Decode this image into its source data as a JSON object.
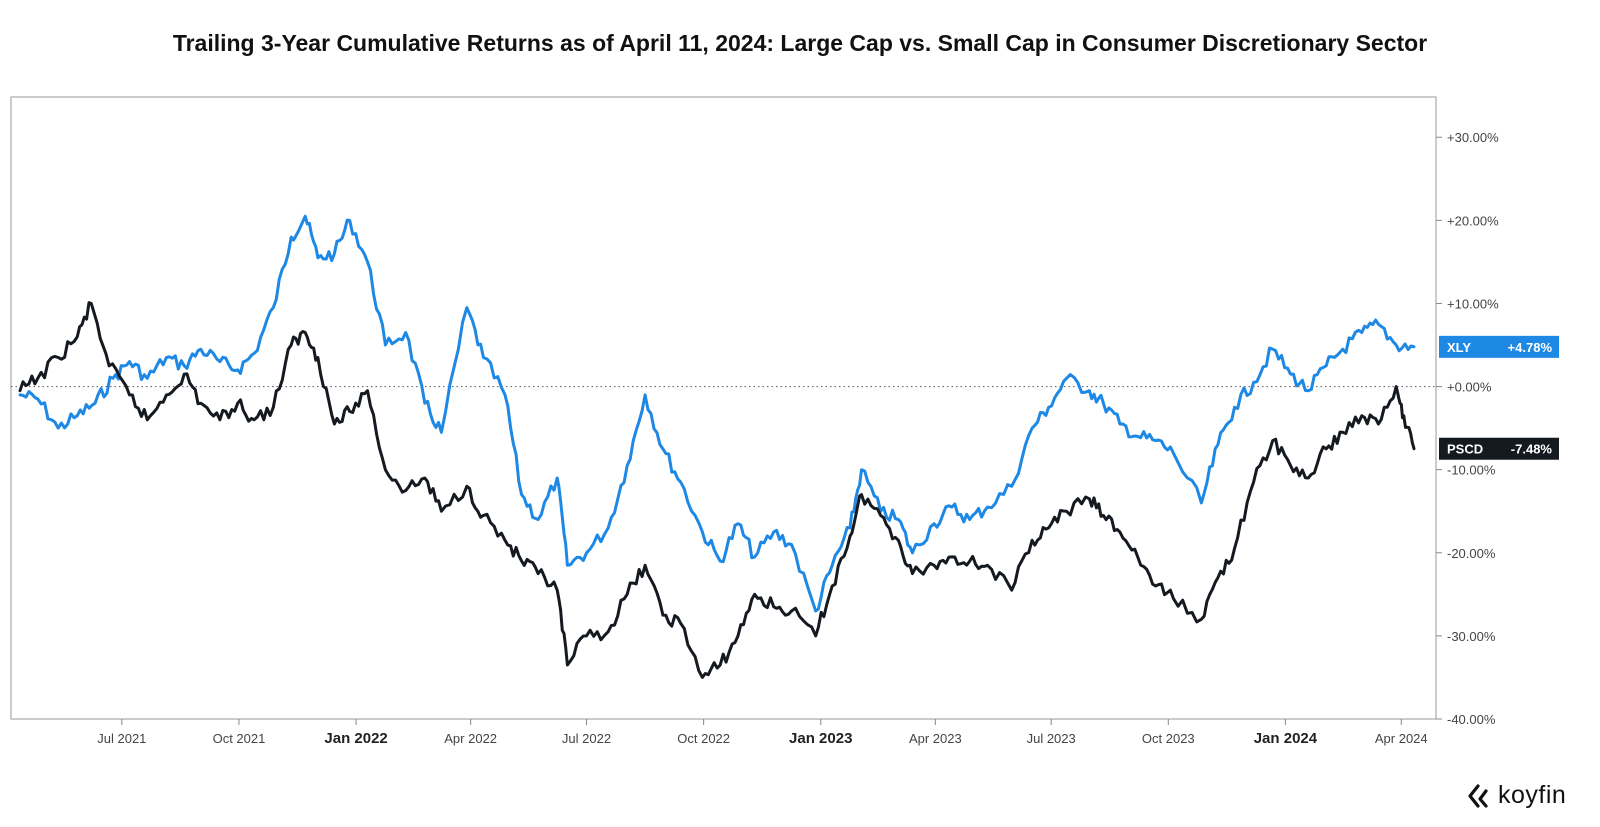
{
  "chart_data": {
    "type": "line",
    "title": "Trailing 3-Year Cumulative Returns as of April 11, 2024: Large Cap vs. Small Cap in Consumer Discretionary Sector",
    "xlabel": "",
    "ylabel": "",
    "xlim": [
      "2021-04-12",
      "2024-04-11"
    ],
    "ylim": [
      -40,
      34
    ],
    "y_ticks": [
      {
        "value": 30,
        "label": "+30.00%"
      },
      {
        "value": 20,
        "label": "+20.00%"
      },
      {
        "value": 10,
        "label": "+10.00%"
      },
      {
        "value": 0,
        "label": "+0.00%"
      },
      {
        "value": -10,
        "label": "-10.00%"
      },
      {
        "value": -20,
        "label": "-20.00%"
      },
      {
        "value": -30,
        "label": "-30.00%"
      },
      {
        "value": -40,
        "label": "-40.00%"
      }
    ],
    "x_ticks": [
      {
        "date": "2021-07-01",
        "label": "Jul 2021",
        "major": false
      },
      {
        "date": "2021-10-01",
        "label": "Oct 2021",
        "major": false
      },
      {
        "date": "2022-01-01",
        "label": "Jan 2022",
        "major": true
      },
      {
        "date": "2022-04-01",
        "label": "Apr 2022",
        "major": false
      },
      {
        "date": "2022-07-01",
        "label": "Jul 2022",
        "major": false
      },
      {
        "date": "2022-10-01",
        "label": "Oct 2022",
        "major": false
      },
      {
        "date": "2023-01-01",
        "label": "Jan 2023",
        "major": true
      },
      {
        "date": "2023-04-01",
        "label": "Apr 2023",
        "major": false
      },
      {
        "date": "2023-07-01",
        "label": "Jul 2023",
        "major": false
      },
      {
        "date": "2023-10-01",
        "label": "Oct 2023",
        "major": false
      },
      {
        "date": "2024-01-01",
        "label": "Jan 2024",
        "major": true
      },
      {
        "date": "2024-04-01",
        "label": "Apr 2024",
        "major": false
      }
    ],
    "zero_line": "dotted",
    "grid": false,
    "series": [
      {
        "name": "XLY",
        "color": "#1e88e5",
        "last_value_label": "+4.78%",
        "points": [
          [
            "2021-04-12",
            -1.0
          ],
          [
            "2021-04-26",
            -1.5
          ],
          [
            "2021-05-12",
            -5.0
          ],
          [
            "2021-05-27",
            -3.5
          ],
          [
            "2021-06-10",
            -2.0
          ],
          [
            "2021-06-24",
            1.0
          ],
          [
            "2021-07-07",
            3.0
          ],
          [
            "2021-07-21",
            1.0
          ],
          [
            "2021-08-05",
            3.5
          ],
          [
            "2021-08-19",
            2.5
          ],
          [
            "2021-09-01",
            4.5
          ],
          [
            "2021-09-16",
            3.0
          ],
          [
            "2021-09-30",
            2.0
          ],
          [
            "2021-10-13",
            4.0
          ],
          [
            "2021-10-28",
            9.5
          ],
          [
            "2021-11-11",
            18.0
          ],
          [
            "2021-11-22",
            20.5
          ],
          [
            "2021-12-02",
            15.5
          ],
          [
            "2021-12-15",
            16.0
          ],
          [
            "2021-12-27",
            20.0
          ],
          [
            "2022-01-10",
            15.0
          ],
          [
            "2022-01-24",
            5.0
          ],
          [
            "2022-02-09",
            6.5
          ],
          [
            "2022-02-24",
            -2.0
          ],
          [
            "2022-03-09",
            -5.5
          ],
          [
            "2022-03-29",
            9.5
          ],
          [
            "2022-04-11",
            3.5
          ],
          [
            "2022-04-28",
            -1.0
          ],
          [
            "2022-05-11",
            -13.0
          ],
          [
            "2022-05-24",
            -16.0
          ],
          [
            "2022-06-08",
            -11.0
          ],
          [
            "2022-06-16",
            -21.5
          ],
          [
            "2022-07-01",
            -20.0
          ],
          [
            "2022-07-18",
            -17.0
          ],
          [
            "2022-08-02",
            -9.5
          ],
          [
            "2022-08-16",
            -1.0
          ],
          [
            "2022-08-30",
            -7.5
          ],
          [
            "2022-09-13",
            -11.5
          ],
          [
            "2022-09-30",
            -17.5
          ],
          [
            "2022-10-14",
            -21.0
          ],
          [
            "2022-10-28",
            -16.5
          ],
          [
            "2022-11-10",
            -20.5
          ],
          [
            "2022-11-25",
            -17.5
          ],
          [
            "2022-12-09",
            -19.0
          ],
          [
            "2022-12-28",
            -27.0
          ],
          [
            "2023-01-10",
            -21.5
          ],
          [
            "2023-01-24",
            -17.0
          ],
          [
            "2023-02-02",
            -10.0
          ],
          [
            "2023-02-17",
            -15.0
          ],
          [
            "2023-03-03",
            -16.0
          ],
          [
            "2023-03-14",
            -20.0
          ],
          [
            "2023-03-31",
            -16.5
          ],
          [
            "2023-04-14",
            -14.5
          ],
          [
            "2023-04-28",
            -16.0
          ],
          [
            "2023-05-12",
            -14.5
          ],
          [
            "2023-05-31",
            -12.0
          ],
          [
            "2023-06-16",
            -5.0
          ],
          [
            "2023-06-29",
            -2.5
          ],
          [
            "2023-07-13",
            1.0
          ],
          [
            "2023-07-31",
            -0.5
          ],
          [
            "2023-08-11",
            -2.0
          ],
          [
            "2023-08-24",
            -4.5
          ],
          [
            "2023-09-07",
            -6.0
          ],
          [
            "2023-09-21",
            -6.5
          ],
          [
            "2023-10-05",
            -8.0
          ],
          [
            "2023-10-27",
            -14.0
          ],
          [
            "2023-11-09",
            -7.0
          ],
          [
            "2023-11-22",
            -2.5
          ],
          [
            "2023-12-07",
            0.5
          ],
          [
            "2023-12-22",
            4.5
          ],
          [
            "2024-01-05",
            1.5
          ],
          [
            "2024-01-19",
            -0.5
          ],
          [
            "2024-02-02",
            2.5
          ],
          [
            "2024-02-15",
            4.5
          ],
          [
            "2024-03-01",
            6.5
          ],
          [
            "2024-03-14",
            7.5
          ],
          [
            "2024-03-28",
            5.0
          ],
          [
            "2024-04-11",
            4.78
          ]
        ]
      },
      {
        "name": "PSCD",
        "color": "#151a21",
        "last_value_label": "-7.48%",
        "points": [
          [
            "2021-04-12",
            -0.5
          ],
          [
            "2021-04-26",
            1.0
          ],
          [
            "2021-05-12",
            3.5
          ],
          [
            "2021-05-27",
            6.0
          ],
          [
            "2021-06-07",
            10.0
          ],
          [
            "2021-06-21",
            2.5
          ],
          [
            "2021-07-07",
            -1.0
          ],
          [
            "2021-07-21",
            -4.0
          ],
          [
            "2021-08-05",
            -1.0
          ],
          [
            "2021-08-19",
            1.5
          ],
          [
            "2021-09-01",
            -2.0
          ],
          [
            "2021-09-16",
            -4.0
          ],
          [
            "2021-09-30",
            -2.0
          ],
          [
            "2021-10-13",
            -4.0
          ],
          [
            "2021-10-28",
            -2.5
          ],
          [
            "2021-11-11",
            5.0
          ],
          [
            "2021-11-22",
            6.5
          ],
          [
            "2021-12-02",
            3.5
          ],
          [
            "2021-12-15",
            -4.5
          ],
          [
            "2021-12-27",
            -3.0
          ],
          [
            "2022-01-10",
            -0.5
          ],
          [
            "2022-01-24",
            -10.0
          ],
          [
            "2022-02-09",
            -12.5
          ],
          [
            "2022-02-24",
            -11.0
          ],
          [
            "2022-03-09",
            -15.0
          ],
          [
            "2022-03-29",
            -12.0
          ],
          [
            "2022-04-11",
            -15.5
          ],
          [
            "2022-04-28",
            -18.5
          ],
          [
            "2022-05-11",
            -21.0
          ],
          [
            "2022-05-24",
            -22.5
          ],
          [
            "2022-06-08",
            -24.5
          ],
          [
            "2022-06-16",
            -33.5
          ],
          [
            "2022-07-01",
            -30.0
          ],
          [
            "2022-07-18",
            -29.5
          ],
          [
            "2022-08-02",
            -25.0
          ],
          [
            "2022-08-16",
            -21.5
          ],
          [
            "2022-08-30",
            -27.5
          ],
          [
            "2022-09-13",
            -28.5
          ],
          [
            "2022-09-30",
            -35.0
          ],
          [
            "2022-10-14",
            -33.5
          ],
          [
            "2022-10-28",
            -30.0
          ],
          [
            "2022-11-10",
            -25.0
          ],
          [
            "2022-11-25",
            -26.5
          ],
          [
            "2022-12-09",
            -27.0
          ],
          [
            "2022-12-28",
            -30.0
          ],
          [
            "2023-01-10",
            -24.0
          ],
          [
            "2023-01-24",
            -18.0
          ],
          [
            "2023-02-02",
            -13.0
          ],
          [
            "2023-02-17",
            -15.5
          ],
          [
            "2023-03-03",
            -18.5
          ],
          [
            "2023-03-14",
            -22.5
          ],
          [
            "2023-03-31",
            -21.5
          ],
          [
            "2023-04-14",
            -20.5
          ],
          [
            "2023-04-28",
            -21.0
          ],
          [
            "2023-05-12",
            -21.5
          ],
          [
            "2023-05-31",
            -24.5
          ],
          [
            "2023-06-16",
            -18.5
          ],
          [
            "2023-06-29",
            -17.0
          ],
          [
            "2023-07-13",
            -15.0
          ],
          [
            "2023-07-31",
            -13.5
          ],
          [
            "2023-08-11",
            -15.5
          ],
          [
            "2023-08-24",
            -17.5
          ],
          [
            "2023-09-07",
            -20.5
          ],
          [
            "2023-09-21",
            -24.0
          ],
          [
            "2023-10-05",
            -25.5
          ],
          [
            "2023-10-27",
            -28.0
          ],
          [
            "2023-11-09",
            -23.0
          ],
          [
            "2023-11-22",
            -19.5
          ],
          [
            "2023-12-07",
            -11.5
          ],
          [
            "2023-12-22",
            -6.5
          ],
          [
            "2024-01-05",
            -9.5
          ],
          [
            "2024-01-19",
            -11.0
          ],
          [
            "2024-02-02",
            -7.5
          ],
          [
            "2024-02-15",
            -5.5
          ],
          [
            "2024-03-01",
            -3.5
          ],
          [
            "2024-03-14",
            -4.5
          ],
          [
            "2024-03-28",
            0.0
          ],
          [
            "2024-04-03",
            -3.5
          ],
          [
            "2024-04-11",
            -7.48
          ]
        ]
      }
    ]
  },
  "brand": {
    "name": "koyfin",
    "logo_icon": "koyfin-chevron-icon"
  }
}
